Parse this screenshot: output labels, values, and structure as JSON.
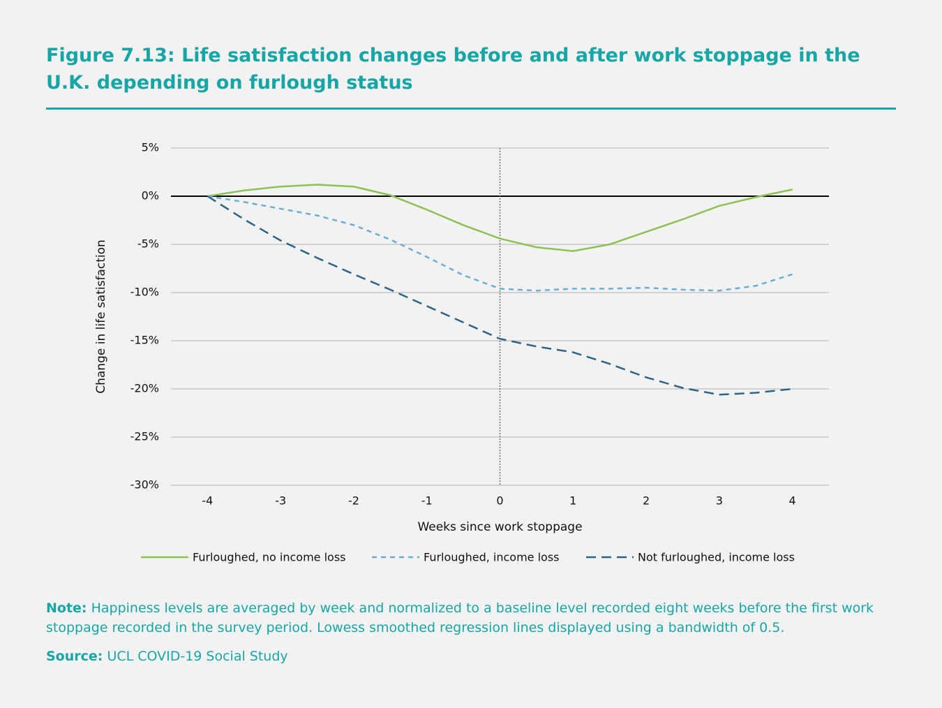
{
  "header": {
    "title": "Figure 7.13: Life satisfaction changes before and after work stoppage in the U.K. depending on furlough status"
  },
  "chart_data": {
    "type": "line",
    "x_label": "Weeks since work stoppage",
    "y_label": "Change in life satisfaction",
    "x": [
      -4,
      -3.5,
      -3,
      -2.5,
      -2,
      -1.5,
      -1,
      -0.5,
      0,
      0.5,
      1,
      1.5,
      2,
      2.5,
      3,
      3.5,
      4
    ],
    "series": [
      {
        "name": "Furloughed, no income loss",
        "color": "#8dc153",
        "dash": "solid",
        "values": [
          0,
          0.6,
          1.0,
          1.2,
          1.0,
          0.1,
          -1.4,
          -3.0,
          -4.4,
          -5.3,
          -5.7,
          -5.0,
          -3.7,
          -2.4,
          -1.0,
          -0.1,
          0.7
        ]
      },
      {
        "name": "Furloughed, income loss",
        "color": "#6aaed6",
        "dash": "short",
        "values": [
          0,
          -0.6,
          -1.3,
          -2.0,
          -3.0,
          -4.5,
          -6.3,
          -8.2,
          -9.6,
          -9.8,
          -9.6,
          -9.6,
          -9.5,
          -9.7,
          -9.8,
          -9.3,
          -8.1
        ]
      },
      {
        "name": "Not furloughed, income loss",
        "color": "#2a6587",
        "dash": "long",
        "values": [
          0,
          -2.4,
          -4.6,
          -6.4,
          -8.1,
          -9.7,
          -11.4,
          -13.1,
          -14.8,
          -15.6,
          -16.2,
          -17.4,
          -18.8,
          -19.9,
          -20.6,
          -20.4,
          -20.0
        ]
      }
    ],
    "xlim": [
      -4.5,
      4.5
    ],
    "xticks": [
      -4,
      -3,
      -2,
      -1,
      0,
      1,
      2,
      3,
      4
    ],
    "ylim": [
      -30,
      5
    ],
    "yticks": [
      {
        "value": 5,
        "label": "5%"
      },
      {
        "value": 0,
        "label": "0%"
      },
      {
        "value": -5,
        "label": "-5%"
      },
      {
        "value": -10,
        "label": "-10%"
      },
      {
        "value": -15,
        "label": "-15%"
      },
      {
        "value": -20,
        "label": "-20%"
      },
      {
        "value": -25,
        "label": "-25%"
      },
      {
        "value": -30,
        "label": "-30%"
      }
    ],
    "grid": true,
    "hline": 0,
    "vline": 0,
    "legend": "bottom"
  },
  "note": {
    "label": "Note:",
    "text": "Happiness levels are averaged by week and normalized to a baseline level recorded eight weeks before the first work stoppage recorded in the survey period. Lowess smoothed regression lines displayed using a bandwidth of 0.5."
  },
  "source": {
    "label": "Source:",
    "text": "UCL COVID-19 Social Study"
  }
}
